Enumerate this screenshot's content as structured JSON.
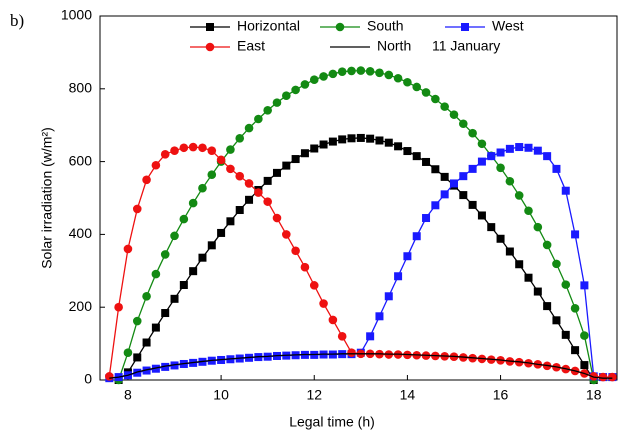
{
  "chart_data": {
    "type": "line",
    "panel_label": "b)",
    "annotation": "11 January",
    "x_label": "Legal time (h)",
    "y_label": "Solar irradiation (w/m²)",
    "xlim": [
      7.4,
      18.5
    ],
    "xticks": [
      8,
      10,
      12,
      14,
      16,
      18
    ],
    "ylim": [
      0,
      1000
    ],
    "yticks": [
      0,
      200,
      400,
      600,
      800,
      1000
    ],
    "legend": "top",
    "x": [
      7.6,
      7.8,
      8.0,
      8.2,
      8.4,
      8.6,
      8.8,
      9.0,
      9.2,
      9.4,
      9.6,
      9.8,
      10.0,
      10.2,
      10.4,
      10.6,
      10.8,
      11.0,
      11.2,
      11.4,
      11.6,
      11.8,
      12.0,
      12.2,
      12.4,
      12.6,
      12.8,
      13.0,
      13.2,
      13.4,
      13.6,
      13.8,
      14.0,
      14.2,
      14.4,
      14.6,
      14.8,
      15.0,
      15.2,
      15.4,
      15.6,
      15.8,
      16.0,
      16.2,
      16.4,
      16.6,
      16.8,
      17.0,
      17.2,
      17.4,
      17.6,
      17.8,
      18.0,
      18.2,
      18.4
    ],
    "series": [
      {
        "name": "Horizontal",
        "color": "#000000",
        "marker": "square",
        "values": [
          null,
          0,
          21,
          62,
          103,
          144,
          184,
          223,
          261,
          299,
          336,
          370,
          404,
          436,
          467,
          495,
          522,
          547,
          569,
          589,
          607,
          623,
          636,
          647,
          655,
          661,
          664,
          665,
          663,
          658,
          652,
          642,
          629,
          615,
          599,
          579,
          558,
          534,
          508,
          481,
          452,
          420,
          388,
          353,
          318,
          281,
          243,
          203,
          164,
          124,
          82,
          41,
          0,
          null,
          null
        ]
      },
      {
        "name": "South",
        "color": "#138a13",
        "marker": "circle",
        "values": [
          null,
          0,
          75,
          162,
          230,
          291,
          345,
          396,
          442,
          486,
          527,
          564,
          600,
          633,
          664,
          692,
          717,
          741,
          762,
          781,
          797,
          812,
          825,
          834,
          841,
          847,
          849,
          850,
          848,
          844,
          838,
          829,
          818,
          805,
          790,
          772,
          751,
          729,
          704,
          678,
          649,
          616,
          583,
          546,
          507,
          465,
          420,
          371,
          319,
          262,
          197,
          122,
          0,
          null,
          null
        ]
      },
      {
        "name": "West",
        "color": "#1a1aff",
        "marker": "square",
        "values": [
          5,
          8,
          13,
          20,
          26,
          31,
          36,
          40,
          44,
          47,
          50,
          53,
          55,
          57,
          59,
          61,
          63,
          64,
          66,
          67,
          68,
          69,
          69,
          70,
          70,
          71,
          71,
          75,
          120,
          175,
          230,
          285,
          340,
          395,
          445,
          480,
          510,
          540,
          560,
          580,
          600,
          615,
          625,
          635,
          640,
          638,
          630,
          615,
          580,
          520,
          400,
          260,
          10,
          8,
          8
        ]
      },
      {
        "name": "East",
        "color": "#ee1111",
        "marker": "circle",
        "values": [
          10,
          200,
          360,
          470,
          550,
          590,
          620,
          630,
          638,
          640,
          638,
          630,
          605,
          580,
          560,
          540,
          515,
          490,
          445,
          400,
          355,
          310,
          260,
          210,
          165,
          120,
          75,
          72,
          72,
          71,
          70,
          70,
          69,
          68,
          67,
          66,
          65,
          64,
          62,
          60,
          58,
          56,
          54,
          51,
          49,
          46,
          43,
          39,
          35,
          30,
          25,
          18,
          10,
          8,
          8
        ]
      },
      {
        "name": "North",
        "color": "#000000",
        "marker": "none",
        "values": [
          5,
          8,
          13,
          22,
          28,
          33,
          38,
          42,
          45,
          48,
          51,
          54,
          56,
          58,
          60,
          62,
          64,
          65,
          67,
          68,
          69,
          70,
          70,
          71,
          71,
          72,
          72,
          72,
          72,
          72,
          71,
          71,
          70,
          69,
          68,
          67,
          66,
          65,
          63,
          61,
          59,
          57,
          55,
          52,
          50,
          47,
          43,
          40,
          36,
          31,
          25,
          18,
          8,
          5,
          5
        ]
      }
    ]
  }
}
